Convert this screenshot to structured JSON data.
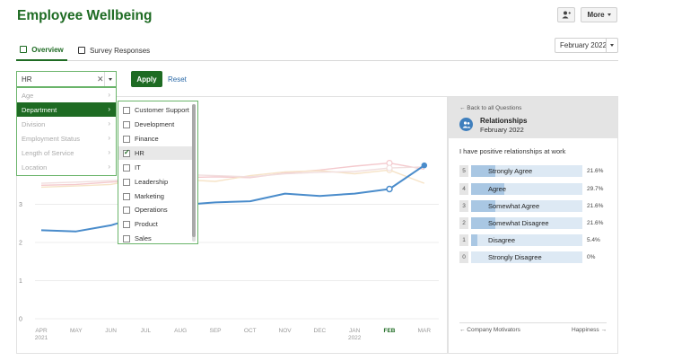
{
  "header": {
    "title": "Employee Wellbeing",
    "more_label": "More",
    "user_icon": "add-user-icon"
  },
  "tabs": [
    {
      "label": "Overview",
      "active": true
    },
    {
      "label": "Survey Responses",
      "active": false
    }
  ],
  "month_select": {
    "value": "February 2022"
  },
  "filter": {
    "value": "HR",
    "apply_label": "Apply",
    "reset_label": "Reset",
    "categories": [
      {
        "label": "Age",
        "active": false
      },
      {
        "label": "Department",
        "active": true
      },
      {
        "label": "Division",
        "active": false
      },
      {
        "label": "Employment Status",
        "active": false
      },
      {
        "label": "Length of Service",
        "active": false
      },
      {
        "label": "Location",
        "active": false
      }
    ],
    "departments": [
      {
        "label": "Customer Support",
        "checked": false
      },
      {
        "label": "Development",
        "checked": false
      },
      {
        "label": "Finance",
        "checked": false
      },
      {
        "label": "HR",
        "checked": true
      },
      {
        "label": "IT",
        "checked": false
      },
      {
        "label": "Leadership",
        "checked": false
      },
      {
        "label": "Marketing",
        "checked": false
      },
      {
        "label": "Operations",
        "checked": false
      },
      {
        "label": "Product",
        "checked": false
      },
      {
        "label": "Sales",
        "checked": false
      }
    ]
  },
  "chart_data": {
    "type": "line",
    "x": [
      "APR",
      "MAY",
      "JUN",
      "JUL",
      "AUG",
      "SEP",
      "OCT",
      "NOV",
      "DEC",
      "JAN",
      "FEB",
      "MAR"
    ],
    "x_years": {
      "APR": "2021",
      "JAN": "2022"
    },
    "highlight_x": "FEB",
    "y_ticks": [
      0,
      1,
      2,
      3
    ],
    "ylim": [
      0,
      4.3
    ],
    "primary_color": "#4a8ccb",
    "series": [
      {
        "values": [
          2.32,
          2.29,
          2.45,
          2.72,
          2.98,
          3.05,
          3.08,
          3.28,
          3.22,
          3.28,
          3.4,
          4.02
        ],
        "color": "#4a8ccb",
        "primary": true,
        "markers": [
          10,
          11
        ]
      },
      {
        "values": [
          3.5,
          3.52,
          3.58,
          3.65,
          3.7,
          3.72,
          3.7,
          3.82,
          3.9,
          4.0,
          4.08,
          3.92
        ],
        "color": "#f4c9cd",
        "primary": false
      },
      {
        "values": [
          3.45,
          3.48,
          3.52,
          3.7,
          3.65,
          3.6,
          3.75,
          3.85,
          3.88,
          3.8,
          3.9,
          3.55
        ],
        "color": "#f6e3c7",
        "primary": false
      },
      {
        "values": [
          3.55,
          3.58,
          3.62,
          3.68,
          3.78,
          3.75,
          3.72,
          3.8,
          3.84,
          3.86,
          3.95,
          3.98
        ],
        "color": "#f1dede",
        "primary": false
      }
    ]
  },
  "panel": {
    "back_label": "← Back to all Questions",
    "topic": "Relationships",
    "month": "February 2022",
    "question": "I have positive relationships at work",
    "responses": [
      {
        "score": "5",
        "label": "Strongly Agree",
        "pct": "21.6%",
        "fill": 0.216
      },
      {
        "score": "4",
        "label": "Agree",
        "pct": "29.7%",
        "fill": 0.297
      },
      {
        "score": "3",
        "label": "Somewhat Agree",
        "pct": "21.6%",
        "fill": 0.216
      },
      {
        "score": "2",
        "label": "Somewhat Disagree",
        "pct": "21.6%",
        "fill": 0.216
      },
      {
        "score": "1",
        "label": "Disagree",
        "pct": "5.4%",
        "fill": 0.054
      },
      {
        "score": "0",
        "label": "Strongly Disagree",
        "pct": "0%",
        "fill": 0
      }
    ],
    "prev_label": "← Company Motivators",
    "next_label": "Happiness →"
  }
}
